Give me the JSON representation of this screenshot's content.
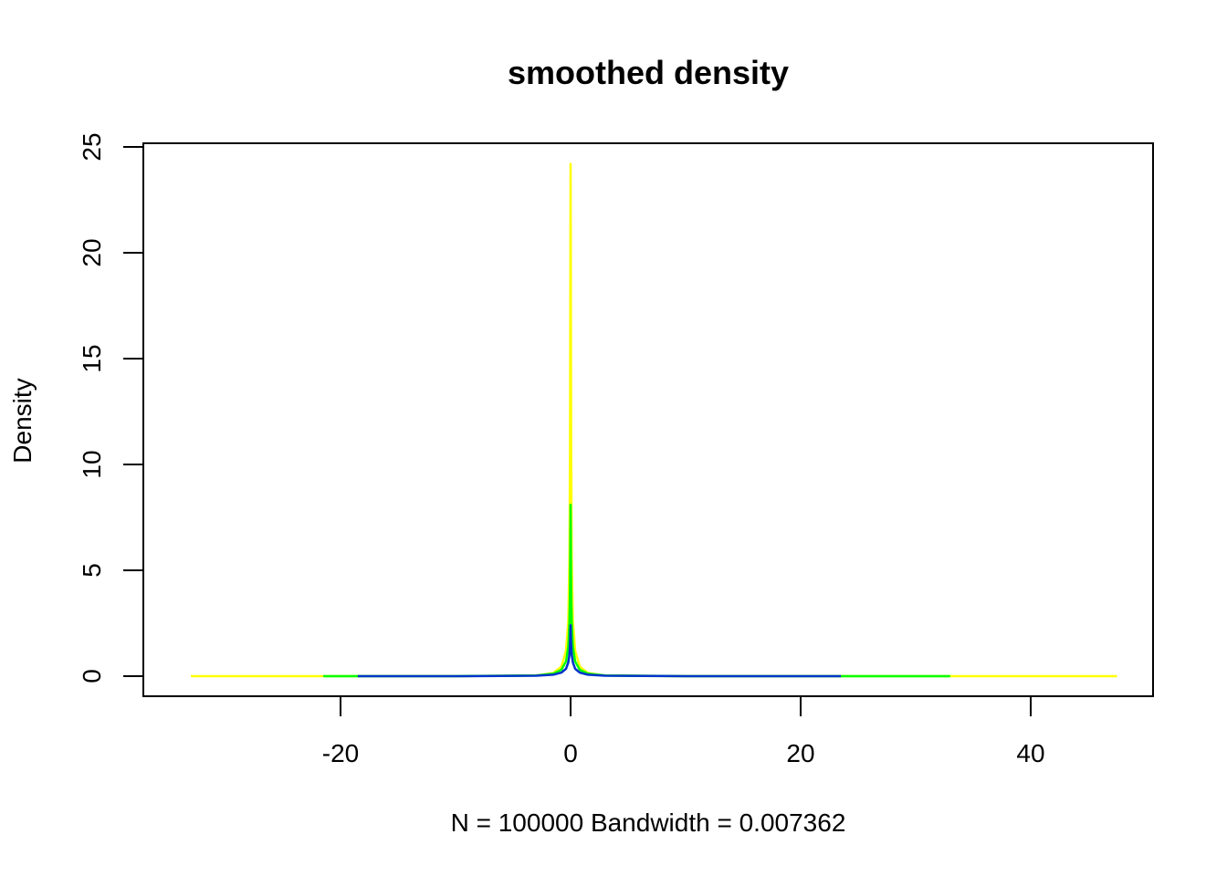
{
  "chart_data": {
    "type": "line",
    "title": "smoothed density",
    "xlabel": "N = 100000   Bandwidth = 0.007362",
    "ylabel": "Density",
    "xlim": [
      -35,
      50
    ],
    "ylim": [
      0,
      25
    ],
    "x_ticks": [
      -20,
      0,
      20,
      40
    ],
    "x_tick_labels": [
      "-20",
      "0",
      "20",
      "40"
    ],
    "y_ticks": [
      0,
      5,
      10,
      15,
      20,
      25
    ],
    "y_tick_labels": [
      "0",
      "5",
      "10",
      "15",
      "20",
      "25"
    ],
    "grid": false,
    "series": [
      {
        "color": "#ffff00",
        "x": [
          -33,
          -10,
          -3,
          -1.5,
          -0.8,
          -0.4,
          -0.2,
          -0.1,
          -0.05,
          0,
          0.05,
          0.1,
          0.2,
          0.4,
          0.8,
          1.5,
          3,
          10,
          30,
          47.5
        ],
        "y": [
          0,
          0,
          0.03,
          0.15,
          0.45,
          1.2,
          2.6,
          5.5,
          10.5,
          24.2,
          10.5,
          5.5,
          2.6,
          1.2,
          0.45,
          0.15,
          0.03,
          0,
          0,
          0
        ]
      },
      {
        "color": "#00ff00",
        "x": [
          -21.5,
          -10,
          -3,
          -1.5,
          -0.8,
          -0.4,
          -0.2,
          -0.1,
          -0.05,
          0,
          0.05,
          0.1,
          0.2,
          0.4,
          0.8,
          1.5,
          3,
          10,
          20,
          33
        ],
        "y": [
          0,
          0,
          0.03,
          0.12,
          0.3,
          0.7,
          1.4,
          2.5,
          4.0,
          8.1,
          4.0,
          2.5,
          1.4,
          0.7,
          0.3,
          0.12,
          0.03,
          0,
          0,
          0
        ]
      },
      {
        "color": "#0033cc",
        "x": [
          -18.5,
          -10,
          -3,
          -1.5,
          -0.8,
          -0.4,
          -0.2,
          -0.1,
          -0.05,
          0,
          0.05,
          0.1,
          0.2,
          0.4,
          0.8,
          1.5,
          3,
          10,
          23.5
        ],
        "y": [
          0,
          0,
          0.02,
          0.07,
          0.17,
          0.35,
          0.65,
          1.0,
          1.5,
          2.4,
          1.5,
          1.0,
          0.65,
          0.35,
          0.17,
          0.07,
          0.02,
          0,
          0
        ]
      }
    ]
  }
}
